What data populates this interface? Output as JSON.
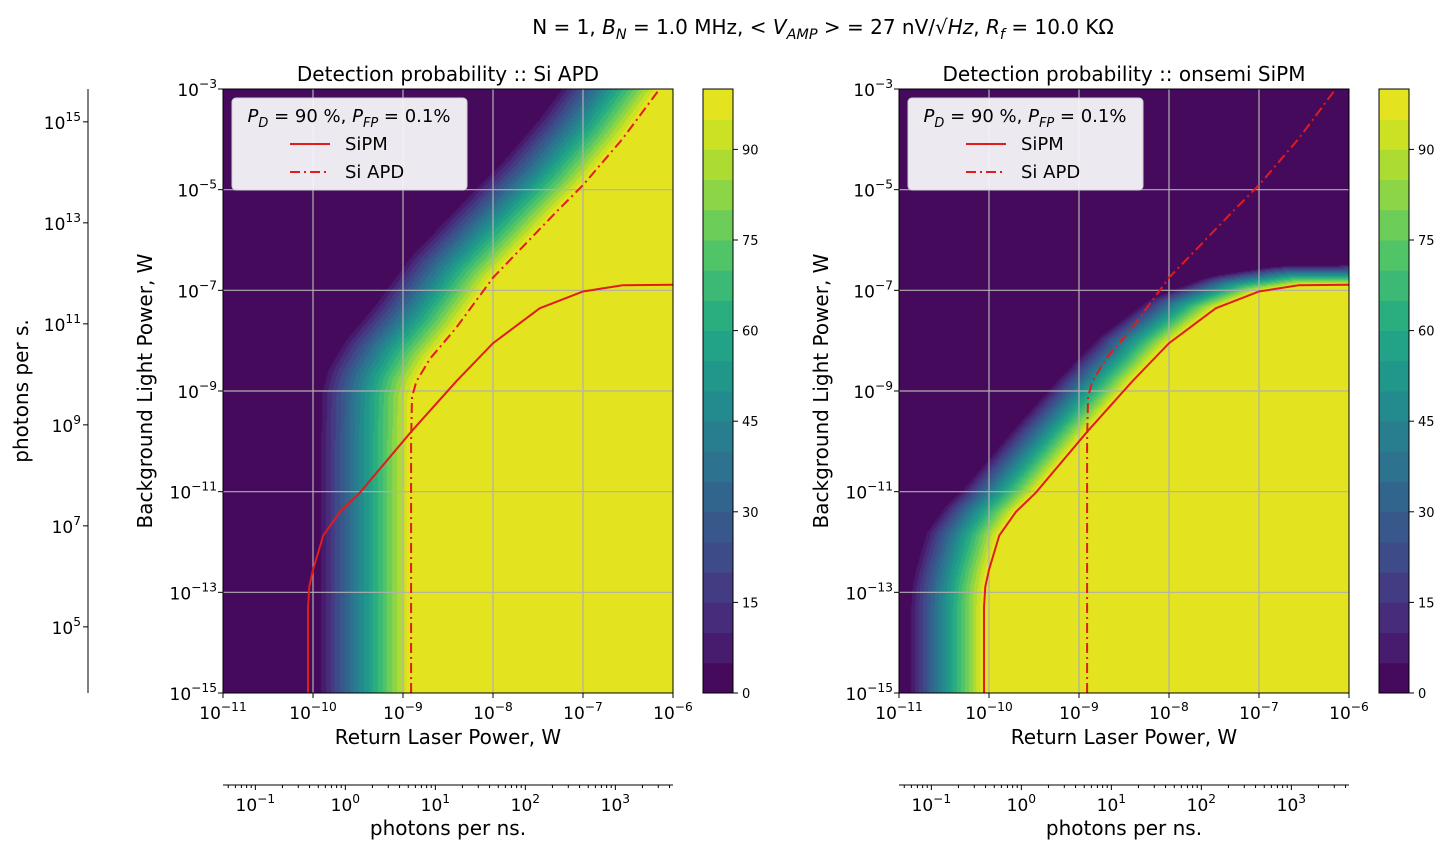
{
  "suptitle": [
    {
      "t": "N = 1, "
    },
    {
      "t": "B",
      "i": true
    },
    {
      "t": "N",
      "i": true,
      "sub": true
    },
    {
      "t": " = 1.0 MHz,  < "
    },
    {
      "t": "V",
      "i": true
    },
    {
      "t": "AMP",
      "i": true,
      "sub": true
    },
    {
      "t": " >  = 27 nV/√"
    },
    {
      "t": "Hz",
      "i": true
    },
    {
      "t": ", "
    },
    {
      "t": "R",
      "i": true
    },
    {
      "t": "f",
      "i": true,
      "sub": true
    },
    {
      "t": " = 10.0 KΩ"
    }
  ],
  "colors": {
    "curve": "#e01c1c",
    "grid": "#b0b0b0",
    "colormap": "viridis"
  },
  "chart_data": [
    {
      "type": "heatmap",
      "title": "Detection probability :: Si APD",
      "xlabel": "Return Laser Power, W",
      "ylabel": "Background Light Power, W",
      "xscale": "log",
      "yscale": "log",
      "xlim": [
        1e-11,
        1e-06
      ],
      "ylim": [
        1e-15,
        0.001
      ],
      "x_ticks": [
        -11,
        -10,
        -9,
        -8,
        -7,
        -6
      ],
      "y_ticks": [
        -15,
        -13,
        -11,
        -9,
        -7,
        -5,
        -3
      ],
      "grid": true,
      "heatmap": {
        "quantity": "detection probability, %",
        "boundary_series": "Si APD",
        "range": [
          0,
          100
        ],
        "level_step": 5
      },
      "colorbar": {
        "ticks": [
          0,
          15,
          30,
          45,
          60,
          75,
          90
        ],
        "range": [
          0,
          100
        ]
      },
      "legend": {
        "title": [
          {
            "t": "P",
            "i": true
          },
          {
            "t": "D",
            "i": true,
            "sub": true
          },
          {
            "t": " = 90 %, "
          },
          {
            "t": "P",
            "i": true
          },
          {
            "t": "FP",
            "i": true,
            "sub": true
          },
          {
            "t": " = 0.1%"
          }
        ],
        "placement": "top-left"
      },
      "series": [
        {
          "name": "SiPM",
          "style": "solid",
          "x": [
            8.8e-11,
            8.8e-11,
            9.1e-11,
            1e-10,
            1.3e-10,
            2e-10,
            3.3e-10,
            1.23e-09,
            3.9e-09,
            1e-08,
            3.3e-08,
            1e-07,
            2.75e-07,
            1e-06
          ],
          "y": [
            1e-15,
            5e-14,
            1.3e-13,
            2.8e-13,
            1.35e-12,
            4e-12,
            9.5e-12,
            1.55e-10,
            1.55e-09,
            8.9e-09,
            4.4e-08,
            9.5e-08,
            1.26e-07,
            1.29e-07
          ]
        },
        {
          "name": "Si APD",
          "style": "dashdot",
          "x": [
            1.23e-09,
            1.23e-09,
            1.26e-09,
            1.41e-09,
            2e-09,
            3.9e-09,
            1e-08,
            5e-08,
            1e-07,
            2.75e-07,
            7.1e-07
          ],
          "y": [
            1e-15,
            1e-10,
            7.6e-10,
            1.55e-09,
            4.4e-09,
            1.8e-08,
            1.78e-07,
            3.55e-06,
            1.23e-05,
            0.000102,
            0.001
          ]
        }
      ],
      "secondary_x": {
        "label": "photons per ns.",
        "lim": [
          0.0437,
          4370
        ],
        "ticks": [
          -1,
          0,
          1,
          2,
          3
        ]
      },
      "secondary_y": {
        "label": "photons per s.",
        "lim": [
          4900.0,
          4470000000000000.0
        ],
        "ticks": [
          5,
          7,
          9,
          11,
          13,
          15
        ]
      }
    },
    {
      "type": "heatmap",
      "title": "Detection probability :: onsemi SiPM",
      "xlabel": "Return Laser Power, W",
      "ylabel": "Background Light Power, W",
      "xscale": "log",
      "yscale": "log",
      "xlim": [
        1e-11,
        1e-06
      ],
      "ylim": [
        1e-15,
        0.001
      ],
      "x_ticks": [
        -11,
        -10,
        -9,
        -8,
        -7,
        -6
      ],
      "y_ticks": [
        -15,
        -13,
        -11,
        -9,
        -7,
        -5,
        -3
      ],
      "grid": true,
      "heatmap": {
        "quantity": "detection probability, %",
        "boundary_series": "SiPM",
        "range": [
          0,
          100
        ],
        "level_step": 5
      },
      "colorbar": {
        "ticks": [
          0,
          15,
          30,
          45,
          60,
          75,
          90
        ],
        "range": [
          0,
          100
        ]
      },
      "legend": {
        "title": [
          {
            "t": "P",
            "i": true
          },
          {
            "t": "D",
            "i": true,
            "sub": true
          },
          {
            "t": " = 90 %, "
          },
          {
            "t": "P",
            "i": true
          },
          {
            "t": "FP",
            "i": true,
            "sub": true
          },
          {
            "t": " = 0.1%"
          }
        ],
        "placement": "top-left"
      },
      "series": [
        {
          "name": "SiPM",
          "style": "solid",
          "x": [
            8.8e-11,
            8.8e-11,
            9.1e-11,
            1e-10,
            1.3e-10,
            2e-10,
            3.3e-10,
            1.23e-09,
            3.9e-09,
            1e-08,
            3.3e-08,
            1e-07,
            2.75e-07,
            1e-06
          ],
          "y": [
            1e-15,
            5e-14,
            1.3e-13,
            2.8e-13,
            1.35e-12,
            4e-12,
            9.5e-12,
            1.55e-10,
            1.55e-09,
            8.9e-09,
            4.4e-08,
            9.5e-08,
            1.26e-07,
            1.29e-07
          ]
        },
        {
          "name": "Si APD",
          "style": "dashdot",
          "x": [
            1.23e-09,
            1.23e-09,
            1.26e-09,
            1.41e-09,
            2e-09,
            3.9e-09,
            1e-08,
            5e-08,
            1e-07,
            2.75e-07,
            7.1e-07
          ],
          "y": [
            1e-15,
            1e-10,
            7.6e-10,
            1.55e-09,
            4.4e-09,
            1.8e-08,
            1.78e-07,
            3.55e-06,
            1.23e-05,
            0.000102,
            0.001
          ]
        }
      ],
      "secondary_x": {
        "label": "photons per ns.",
        "lim": [
          0.0437,
          4370
        ],
        "ticks": [
          -1,
          0,
          1,
          2,
          3
        ]
      }
    }
  ]
}
